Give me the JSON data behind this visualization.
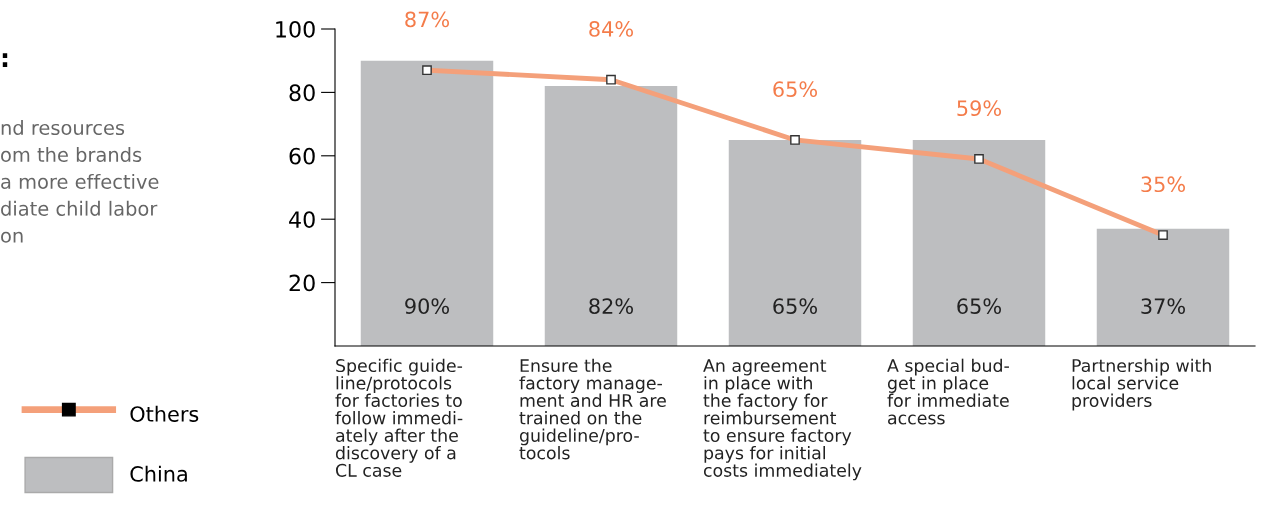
{
  "chart_data": {
    "type": "bar",
    "title": ":",
    "annotations": [
      "nd resources\nom the brands\na more effective\ndiate child labor\non"
    ],
    "categories": [
      "Specific guide-\nline/protocols\nfor factories to\nfollow immedi-\nately after the\ndiscovery of a\nCL case",
      "Ensure the\nfactory manage-\nment and HR are\ntrained on the\nguideline/pro-\ntocols",
      "An agreement\nin place with\nthe factory for\nreimbursement\nto ensure factory\npays for initial\ncosts immediately",
      "A special bud-\nget in place\nfor immediate\naccess",
      "Partnership with\nlocal service\nproviders"
    ],
    "series": [
      {
        "name": "China",
        "color": "#bdbec0",
        "values": [
          90,
          82,
          65,
          65,
          37
        ],
        "value_labels": [
          "90%",
          "82%",
          "65%",
          "65%",
          "37%"
        ]
      },
      {
        "name": "Others",
        "type": "line",
        "color": "#f4a07a",
        "marker": "square",
        "values": [
          87,
          84,
          65,
          59,
          35
        ],
        "value_labels": [
          "87%",
          "84%",
          "65%",
          "59%",
          "35%"
        ]
      }
    ],
    "ylim": [
      0,
      100
    ],
    "yticks": [
      20,
      40,
      60,
      80,
      100
    ],
    "grid": false,
    "legend": "left"
  }
}
